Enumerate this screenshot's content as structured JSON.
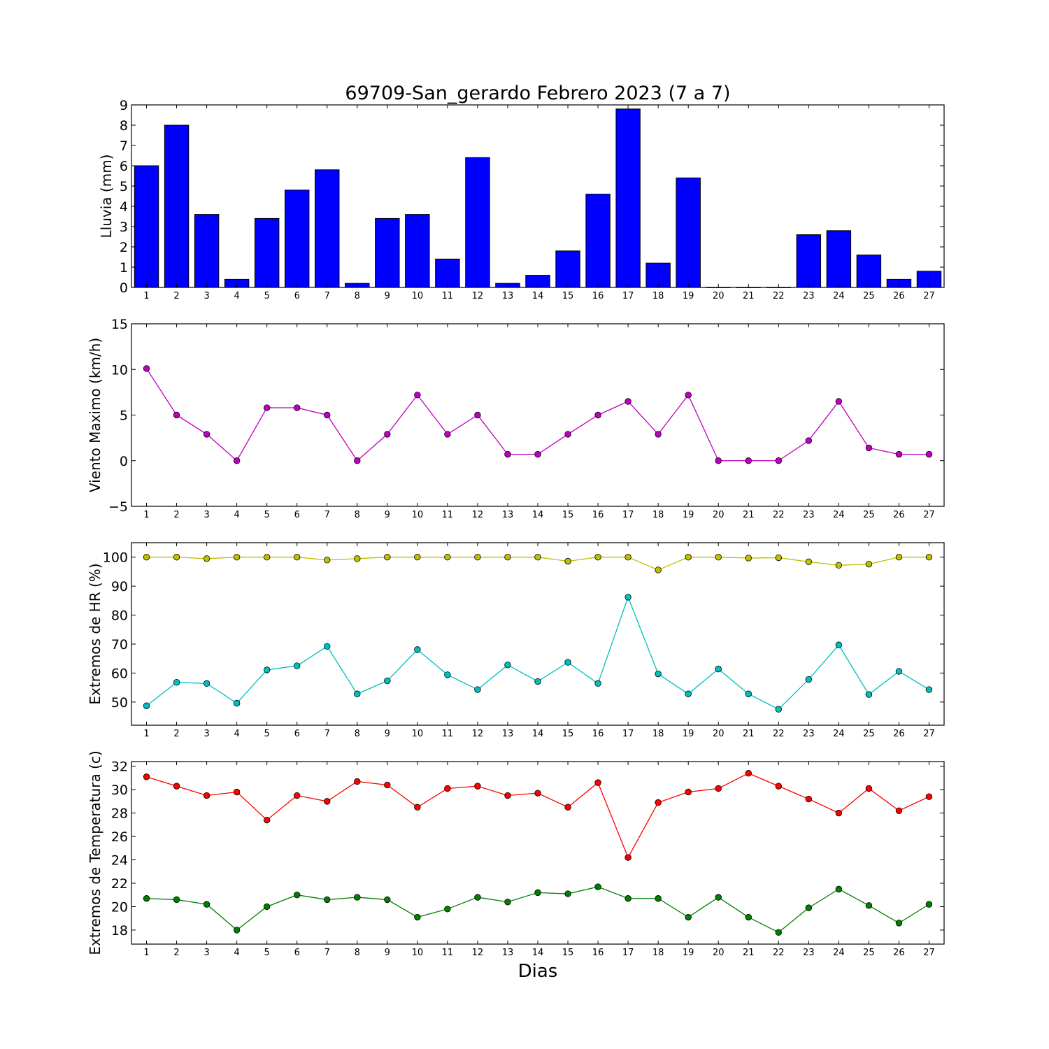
{
  "figure": {
    "title": "69709-San_gerardo Febrero 2023  (7 a 7)",
    "xlabel": "Dias"
  },
  "chart_data": [
    {
      "type": "bar",
      "ylabel": "Lluvia (mm)",
      "ylim": [
        0,
        9
      ],
      "yticks": [
        0,
        1,
        2,
        3,
        4,
        5,
        6,
        7,
        8,
        9
      ],
      "x": [
        1,
        2,
        3,
        4,
        5,
        6,
        7,
        8,
        9,
        10,
        11,
        12,
        13,
        14,
        15,
        16,
        17,
        18,
        19,
        20,
        21,
        22,
        23,
        24,
        25,
        26,
        27
      ],
      "values": [
        6.0,
        8.0,
        3.6,
        0.4,
        3.4,
        4.8,
        5.8,
        0.2,
        3.4,
        3.6,
        1.4,
        6.4,
        0.2,
        0.6,
        1.8,
        4.6,
        8.8,
        1.2,
        5.4,
        0.0,
        0.0,
        0.0,
        2.6,
        2.8,
        1.6,
        0.4,
        0.8
      ],
      "color": "#0000ff"
    },
    {
      "type": "line",
      "ylabel": "Viento Maximo (km/h)",
      "ylim": [
        -5,
        15
      ],
      "yticks": [
        -5,
        0,
        5,
        10,
        15
      ],
      "ytick_labels": [
        "−5",
        "0",
        "5",
        "10",
        "15"
      ],
      "x": [
        1,
        2,
        3,
        4,
        5,
        6,
        7,
        8,
        9,
        10,
        11,
        12,
        13,
        14,
        15,
        16,
        17,
        18,
        19,
        20,
        21,
        22,
        23,
        24,
        25,
        26,
        27
      ],
      "series": [
        {
          "color": "#bf00bf",
          "values": [
            10.1,
            5.0,
            2.9,
            0.0,
            5.8,
            5.8,
            5.0,
            0.0,
            2.9,
            7.2,
            2.9,
            5.0,
            0.7,
            0.7,
            2.9,
            5.0,
            6.5,
            2.9,
            7.2,
            0.0,
            0.0,
            0.0,
            2.2,
            6.5,
            1.4,
            0.7,
            0.7
          ]
        }
      ]
    },
    {
      "type": "line",
      "ylabel": "Extremos de HR (%)",
      "ylim": [
        42,
        105
      ],
      "yticks": [
        50,
        60,
        70,
        80,
        90,
        100
      ],
      "x": [
        1,
        2,
        3,
        4,
        5,
        6,
        7,
        8,
        9,
        10,
        11,
        12,
        13,
        14,
        15,
        16,
        17,
        18,
        19,
        20,
        21,
        22,
        23,
        24,
        25,
        26,
        27
      ],
      "series": [
        {
          "color": "#bfbf00",
          "values": [
            100,
            100,
            99.5,
            100,
            100,
            100,
            99,
            99.5,
            100,
            100,
            100,
            100,
            100,
            100,
            98.6,
            100,
            100,
            95.6,
            100,
            100,
            99.7,
            99.8,
            98.4,
            97.2,
            97.6,
            100,
            100
          ]
        },
        {
          "color": "#00bfbf",
          "values": [
            48.7,
            56.8,
            56.4,
            49.6,
            61.1,
            62.5,
            69.2,
            52.8,
            57.3,
            68.1,
            59.4,
            54.3,
            62.8,
            57.1,
            63.7,
            56.4,
            86.2,
            59.7,
            52.8,
            61.4,
            52.8,
            47.5,
            57.8,
            69.7,
            52.6,
            60.6,
            54.3
          ]
        }
      ]
    },
    {
      "type": "line",
      "ylabel": "Extremos de Temperatura (c)",
      "ylim": [
        16.8,
        32.4
      ],
      "yticks": [
        18,
        20,
        22,
        24,
        26,
        28,
        30,
        32
      ],
      "x": [
        1,
        2,
        3,
        4,
        5,
        6,
        7,
        8,
        9,
        10,
        11,
        12,
        13,
        14,
        15,
        16,
        17,
        18,
        19,
        20,
        21,
        22,
        23,
        24,
        25,
        26,
        27
      ],
      "series": [
        {
          "color": "#ff0000",
          "values": [
            31.1,
            30.3,
            29.5,
            29.8,
            27.4,
            29.5,
            29.0,
            30.7,
            30.4,
            28.5,
            30.1,
            30.3,
            29.5,
            29.7,
            28.5,
            30.6,
            24.2,
            28.9,
            29.8,
            30.1,
            31.4,
            30.3,
            29.2,
            28.0,
            30.1,
            28.2,
            29.4
          ]
        },
        {
          "color": "#007f00",
          "values": [
            20.7,
            20.6,
            20.2,
            18.0,
            20.0,
            21.0,
            20.6,
            20.8,
            20.6,
            19.1,
            19.8,
            20.8,
            20.4,
            21.2,
            21.1,
            21.7,
            20.7,
            20.7,
            19.1,
            20.8,
            19.1,
            17.8,
            19.9,
            21.5,
            20.1,
            18.6,
            20.2
          ]
        }
      ]
    }
  ]
}
